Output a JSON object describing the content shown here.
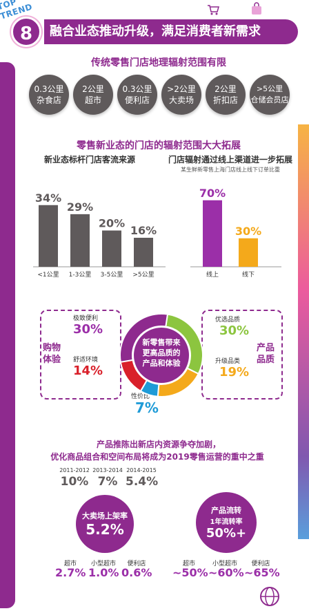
{
  "header": {
    "top_trend": "TOP TREND",
    "number": "8",
    "title": "融合业态推动升级，满足消费者新需求"
  },
  "section1": {
    "title": "传统零售门店地理辐射范围有限",
    "circles": [
      {
        "line1": "0.3公里",
        "line2": "杂食店"
      },
      {
        "line1": "2公里",
        "line2": "超市"
      },
      {
        "line1": "0.3公里",
        "line2": "便利店"
      },
      {
        "line1": ">2公里",
        "line2": "大卖场"
      },
      {
        "line1": "2公里",
        "line2": "折扣店"
      },
      {
        "line1": ">5公里",
        "line2": "仓储会员店"
      }
    ]
  },
  "section2": {
    "title": "零售新业态的门店的辐射范围大大拓展",
    "left_title": "新业态标杆门店客流来源",
    "right_title": "门店辐射通过线上渠道进一步拓展",
    "right_note": "某生鲜新零售上海门店线上线下订单比重"
  },
  "chart_data": [
    {
      "type": "bar",
      "title": "新业态标杆门店客流来源",
      "categories": [
        "<1公里",
        "1-3公里",
        "3-5公里",
        ">5公里"
      ],
      "values": [
        34,
        29,
        20,
        16
      ],
      "value_labels": [
        "34%",
        "29%",
        "20%",
        "16%"
      ],
      "color": "#5f5a5b",
      "ylim": [
        0,
        40
      ]
    },
    {
      "type": "bar",
      "title": "门店辐射通过线上渠道进一步拓展",
      "categories": [
        "线上",
        "线下"
      ],
      "values": [
        70,
        30
      ],
      "value_labels": [
        "70%",
        "30%"
      ],
      "colors": [
        "#9b2fa8",
        "#f4a91b"
      ],
      "ylim": [
        0,
        80
      ]
    },
    {
      "type": "pie",
      "title": "新零售带来更高品质的产品和体验",
      "categories": [
        "优选品质",
        "升级品类",
        "性价比",
        "舒适环境",
        "极致便利"
      ],
      "values": [
        30,
        19,
        7,
        14,
        30
      ],
      "value_labels": [
        "30%",
        "19%",
        "7%",
        "14%",
        "30%"
      ],
      "colors": [
        "#8cc53f",
        "#f4a91b",
        "#1e9bd7",
        "#d9202a",
        "#8e2a8e"
      ]
    }
  ],
  "section3": {
    "center_text": [
      "新零售带来",
      "更高品质的",
      "产品和体验"
    ],
    "left_group": "购物体验",
    "right_group": "产品品质",
    "labels": {
      "jz_bianli": "极致便利",
      "shushi": "舒适环境",
      "youxuan": "优选品质",
      "shengji": "升级品类",
      "xingjiabi": "性价比"
    },
    "values": {
      "jz_bianli": "30%",
      "shushi": "14%",
      "youxuan": "30%",
      "shengji": "19%",
      "xingjiabi": "7%"
    }
  },
  "section4": {
    "title_line1": "产品推陈出新店内资源争夺加剧，",
    "title_line2": "优化商品组合和空间布局将成为2019零售运营的重中之重",
    "years": [
      {
        "label": "2011-2012",
        "value": "10%"
      },
      {
        "label": "2013-2014",
        "value": "7%"
      },
      {
        "label": "2014-2015",
        "value": "5.4%"
      }
    ],
    "left_bubble": {
      "label": "大卖场上架率",
      "value": "5.2%"
    },
    "right_bubble": {
      "label": "产品流转",
      "sublabel": "1年流转率",
      "value": "50%+"
    },
    "left_bottom": [
      {
        "label": "超市",
        "value": "2.7%"
      },
      {
        "label": "小型超市",
        "value": "1.0%"
      },
      {
        "label": "便利店",
        "value": "0.6%"
      }
    ],
    "right_bottom": [
      {
        "label": "超市",
        "value": "~50%"
      },
      {
        "label": "小型超市",
        "value": "~60%"
      },
      {
        "label": "便利店",
        "value": "~65%"
      }
    ]
  }
}
